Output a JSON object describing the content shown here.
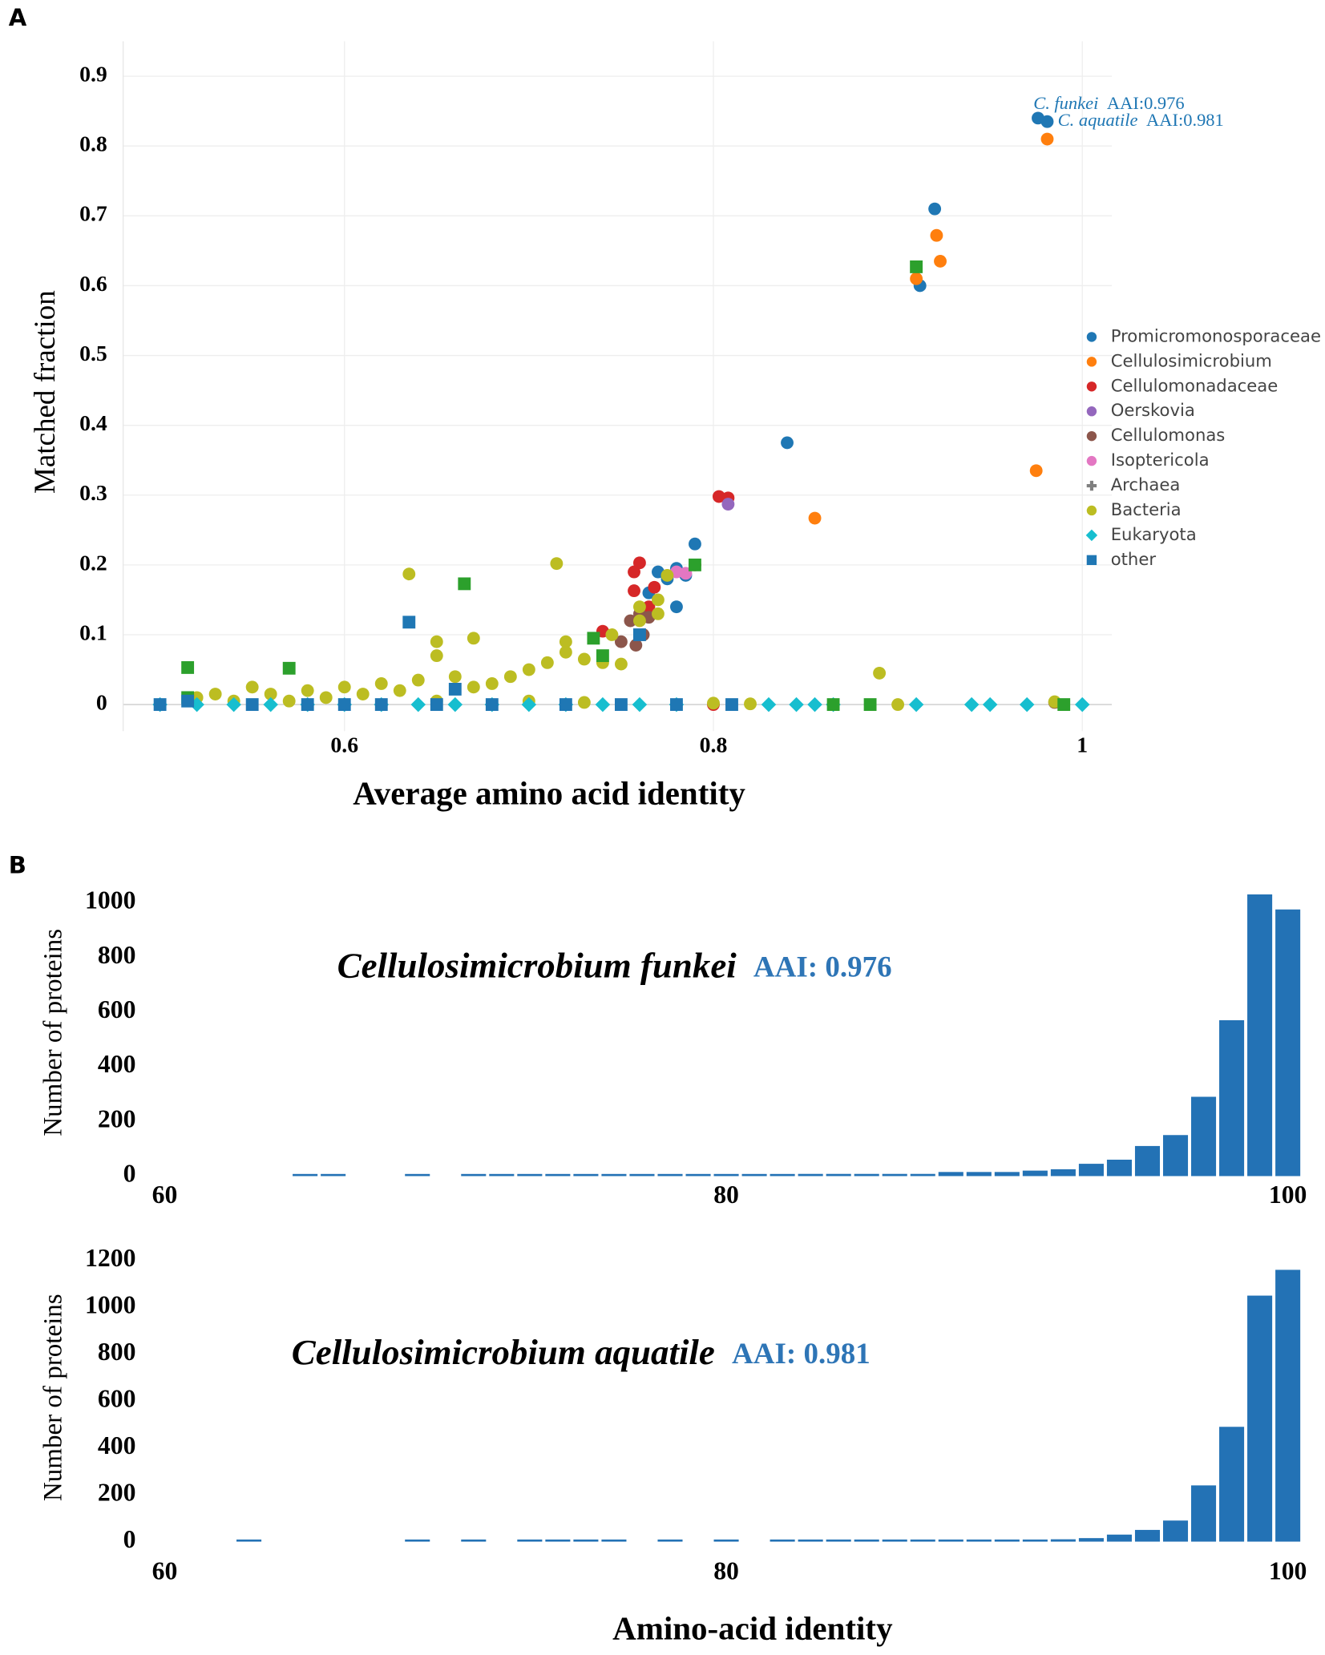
{
  "chart_data": [
    {
      "type": "scatter",
      "panel": "A",
      "xlabel": "Average amino acid identity",
      "ylabel": "Matched fraction",
      "xlim": [
        0.48,
        1.016
      ],
      "ylim": [
        -0.038,
        0.95
      ],
      "xticks": [
        0.6,
        0.8,
        1
      ],
      "yticks": [
        0,
        0.1,
        0.2,
        0.3,
        0.4,
        0.5,
        0.6,
        0.7,
        0.8,
        0.9
      ],
      "grid": true,
      "legend": "right",
      "annotations": [
        {
          "name": "C. funkei",
          "text": "AAI:0.976"
        },
        {
          "name": "C. aquatile",
          "text": "AAI:0.981"
        }
      ],
      "series": [
        {
          "name": "Promicromonosporaceae",
          "color": "#1f77b4",
          "marker": "circle",
          "x": [
            0.976,
            0.981,
            0.92,
            0.912,
            0.84,
            0.79,
            0.77,
            0.78,
            0.765,
            0.785,
            0.78,
            0.775
          ],
          "y": [
            0.84,
            0.835,
            0.71,
            0.6,
            0.375,
            0.23,
            0.19,
            0.195,
            0.16,
            0.185,
            0.14,
            0.18
          ]
        },
        {
          "name": "Cellulosimicrobium",
          "color": "#ff7f0e",
          "marker": "circle",
          "x": [
            0.981,
            0.921,
            0.923,
            0.91,
            0.975,
            0.855
          ],
          "y": [
            0.81,
            0.672,
            0.635,
            0.61,
            0.335,
            0.267
          ]
        },
        {
          "name": "Cellulomonadaceae",
          "color": "#d62728",
          "marker": "circle",
          "x": [
            0.803,
            0.808,
            0.76,
            0.757,
            0.74,
            0.768,
            0.79,
            0.757,
            0.8,
            0.765
          ],
          "y": [
            0.298,
            0.296,
            0.203,
            0.19,
            0.105,
            0.168,
            0.2,
            0.163,
            0,
            0.14
          ]
        },
        {
          "name": "Oerskovia",
          "color": "#9467bd",
          "marker": "circle",
          "x": [
            0.808
          ],
          "y": [
            0.287
          ]
        },
        {
          "name": "Cellulomonas",
          "color": "#8c564b",
          "marker": "circle",
          "x": [
            0.75,
            0.758,
            0.762,
            0.755,
            0.76,
            0.765,
            0.985
          ],
          "y": [
            0.09,
            0.085,
            0.1,
            0.12,
            0.13,
            0.125,
            0.003
          ]
        },
        {
          "name": "Isoptericola",
          "color": "#e377c2",
          "marker": "circle",
          "x": [
            0.78,
            0.785
          ],
          "y": [
            0.19,
            0.188
          ]
        },
        {
          "name": "Archaea",
          "color": "#7f7f7f",
          "marker": "plus",
          "x": [],
          "y": []
        },
        {
          "name": "Bacteria",
          "color": "#bcbd22",
          "marker": "circle",
          "x": [
            0.635,
            0.715,
            0.89,
            0.65,
            0.67,
            0.65,
            0.72,
            0.73,
            0.74,
            0.75,
            0.76,
            0.77,
            0.77,
            0.775,
            0.71,
            0.7,
            0.69,
            0.66,
            0.64,
            0.62,
            0.6,
            0.55,
            0.53,
            0.52,
            0.58,
            0.56,
            0.68,
            0.67,
            0.63,
            0.61,
            0.59,
            0.57,
            0.54,
            0.65,
            0.7,
            0.73,
            0.8,
            0.82,
            0.9,
            0.985,
            0.72,
            0.745,
            0.76
          ],
          "y": [
            0.187,
            0.202,
            0.045,
            0.09,
            0.095,
            0.07,
            0.09,
            0.065,
            0.06,
            0.058,
            0.12,
            0.15,
            0.13,
            0.185,
            0.06,
            0.05,
            0.04,
            0.04,
            0.035,
            0.03,
            0.025,
            0.025,
            0.015,
            0.01,
            0.02,
            0.015,
            0.03,
            0.025,
            0.02,
            0.015,
            0.01,
            0.005,
            0.005,
            0.005,
            0.005,
            0.003,
            0.002,
            0.001,
            0,
            0.004,
            0.075,
            0.1,
            0.14
          ]
        },
        {
          "name": "Eukaryota",
          "color": "#17becf",
          "marker": "diamond",
          "x": [
            0.5,
            0.52,
            0.54,
            0.56,
            0.58,
            0.6,
            0.62,
            0.64,
            0.66,
            0.68,
            0.7,
            0.72,
            0.74,
            0.76,
            0.78,
            0.83,
            0.845,
            0.855,
            0.865,
            0.91,
            0.94,
            0.95,
            0.97,
            1.0
          ],
          "y": [
            0,
            0,
            0,
            0,
            0,
            0,
            0,
            0,
            0,
            0,
            0,
            0,
            0,
            0,
            0,
            0,
            0,
            0,
            0,
            0,
            0,
            0,
            0,
            0
          ]
        },
        {
          "name": "other",
          "color": "#1f77b4",
          "marker": "square",
          "x": [
            0.635,
            0.665,
            0.515,
            0.57,
            0.66,
            0.735,
            0.74,
            0.76,
            0.79,
            0.91,
            0.885,
            0.865,
            0.99,
            0.515,
            0.5,
            0.515,
            0.55,
            0.58,
            0.62,
            0.68,
            0.72,
            0.75,
            0.78,
            0.81,
            0.6,
            0.65
          ],
          "y": [
            0.118,
            0.173,
            0.053,
            0.052,
            0.022,
            0.095,
            0.07,
            0.1,
            0.2,
            0.627,
            0,
            0,
            0,
            0.01,
            0,
            0.005,
            0,
            0,
            0,
            0,
            0,
            0,
            0,
            0,
            0,
            0
          ],
          "colors": [
            "#1f77b4",
            "#2ca02c",
            "#2ca02c",
            "#2ca02c",
            "#1f77b4",
            "#2ca02c",
            "#2ca02c",
            "#1f77b4",
            "#2ca02c",
            "#2ca02c",
            "#2ca02c",
            "#2ca02c",
            "#2ca02c",
            "#2ca02c",
            "#1f77b4",
            "#1f77b4",
            "#1f77b4",
            "#1f77b4",
            "#1f77b4",
            "#1f77b4",
            "#1f77b4",
            "#1f77b4",
            "#1f77b4",
            "#1f77b4",
            "#1f77b4",
            "#1f77b4"
          ]
        }
      ]
    },
    {
      "type": "histogram",
      "panel": "B",
      "title": "Cellulosimicrobium funkei",
      "subtitle": "AAI: 0.976",
      "ylabel": "Number of proteins",
      "color": "#2372b5",
      "xlim": [
        59.5,
        100.6
      ],
      "ylim": [
        0,
        1050
      ],
      "xticks": [
        60,
        80,
        100
      ],
      "yticks": [
        0,
        200,
        400,
        600,
        800,
        1000
      ],
      "bins": [
        64.5,
        65.5,
        66.5,
        67.5,
        68.5,
        69.5,
        70.5,
        71.5,
        72.5,
        73.5,
        74.5,
        75.5,
        76.5,
        77.5,
        78.5,
        79.5,
        80.5,
        81.5,
        82.5,
        83.5,
        84.5,
        85.5,
        86.5,
        87.5,
        88.5,
        89.5,
        90.5,
        91.5,
        92.5,
        93.5,
        94.5,
        95.5,
        96.5,
        97.5,
        98.5,
        99.5,
        100.5
      ],
      "values": [
        5,
        5,
        0,
        0,
        5,
        0,
        5,
        5,
        5,
        5,
        5,
        5,
        5,
        5,
        5,
        6,
        6,
        6,
        8,
        8,
        8,
        8,
        8,
        15,
        15,
        15,
        20,
        25,
        45,
        60,
        110,
        150,
        290,
        570,
        1030,
        975
      ]
    },
    {
      "type": "histogram",
      "title": "Cellulosimicrobium aquatile",
      "subtitle": "AAI: 0.981",
      "ylabel": "Number of proteins",
      "xlabel": "Amino-acid identity",
      "color": "#2372b5",
      "xlim": [
        59.5,
        100.6
      ],
      "ylim": [
        0,
        1230
      ],
      "xticks": [
        60,
        80,
        100
      ],
      "yticks": [
        0,
        200,
        400,
        600,
        800,
        1000,
        1200
      ],
      "bins": [
        62.5,
        63.5,
        64.5,
        65.5,
        66.5,
        67.5,
        68.5,
        69.5,
        70.5,
        71.5,
        72.5,
        73.5,
        74.5,
        75.5,
        76.5,
        77.5,
        78.5,
        79.5,
        80.5,
        81.5,
        82.5,
        83.5,
        84.5,
        85.5,
        86.5,
        87.5,
        88.5,
        89.5,
        90.5,
        91.5,
        92.5,
        93.5,
        94.5,
        95.5,
        96.5,
        97.5,
        98.5,
        99.5,
        100.5
      ],
      "values": [
        5,
        0,
        0,
        0,
        0,
        0,
        5,
        0,
        5,
        0,
        5,
        5,
        5,
        5,
        0,
        5,
        0,
        5,
        0,
        5,
        5,
        5,
        5,
        5,
        5,
        5,
        5,
        5,
        8,
        10,
        15,
        30,
        50,
        90,
        240,
        490,
        1050,
        1160
      ]
    }
  ]
}
